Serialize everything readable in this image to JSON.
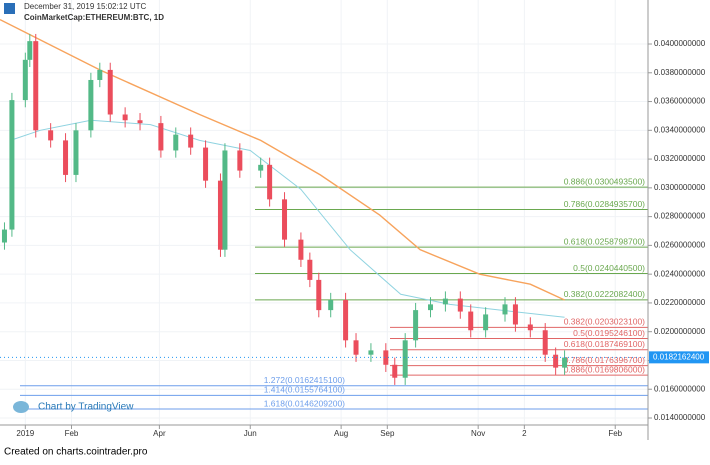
{
  "chart_data": {
    "type": "candlestick",
    "header": {
      "date": "December 31, 2019 15:02:12 UTC",
      "symbol": "CoinMarketCap:ETHEREUM:BTC, 1D"
    },
    "watermark": "Chart by TradingView",
    "footer": "Created on charts.cointrader.pro",
    "x": [
      -14,
      -9,
      0,
      3,
      7,
      17,
      27,
      34,
      44,
      50,
      57,
      67,
      77,
      91,
      101,
      111,
      121,
      131,
      134,
      144,
      158,
      164,
      174,
      185,
      191,
      197,
      205,
      215,
      222,
      232,
      242,
      248,
      255,
      262,
      272,
      282,
      292,
      299,
      309,
      322,
      329,
      339,
      349,
      356,
      362
    ],
    "open": [
      0.0262,
      0.0271,
      0.0361,
      0.0389,
      0.0402,
      0.034,
      0.0333,
      0.0309,
      0.034,
      0.0375,
      0.0382,
      0.0351,
      0.0347,
      0.0345,
      0.0326,
      0.0337,
      0.0328,
      0.0305,
      0.0257,
      0.0326,
      0.0312,
      0.0316,
      0.0292,
      0.0264,
      0.025,
      0.0236,
      0.0215,
      0.0222,
      0.0194,
      0.0184,
      0.0187,
      0.0177,
      0.0168,
      0.0194,
      0.0215,
      0.0219,
      0.0223,
      0.0214,
      0.0201,
      0.0212,
      0.0219,
      0.0205,
      0.0201,
      0.0184,
      0.0175
    ],
    "high": [
      0.0276,
      0.0366,
      0.0394,
      0.0407,
      0.0407,
      0.0345,
      0.0338,
      0.0345,
      0.038,
      0.0387,
      0.0387,
      0.0356,
      0.0352,
      0.035,
      0.0342,
      0.0342,
      0.0333,
      0.031,
      0.0331,
      0.0331,
      0.0321,
      0.0321,
      0.0297,
      0.0269,
      0.0255,
      0.0241,
      0.0227,
      0.0227,
      0.0199,
      0.0192,
      0.0192,
      0.0182,
      0.0199,
      0.022,
      0.0224,
      0.0228,
      0.0228,
      0.0219,
      0.0217,
      0.0224,
      0.0224,
      0.021,
      0.0206,
      0.0189,
      0.0187
    ],
    "low": [
      0.0257,
      0.0266,
      0.0356,
      0.0384,
      0.0335,
      0.0328,
      0.0304,
      0.0304,
      0.0335,
      0.037,
      0.0346,
      0.0342,
      0.034,
      0.0321,
      0.0321,
      0.0323,
      0.03,
      0.0252,
      0.0252,
      0.0307,
      0.0307,
      0.0287,
      0.0259,
      0.0245,
      0.0231,
      0.021,
      0.021,
      0.0189,
      0.0179,
      0.0179,
      0.0172,
      0.0163,
      0.0163,
      0.0189,
      0.021,
      0.0214,
      0.0209,
      0.0196,
      0.0196,
      0.0207,
      0.02,
      0.0196,
      0.0179,
      0.017,
      0.017
    ],
    "close": [
      0.0271,
      0.0361,
      0.0389,
      0.0402,
      0.034,
      0.0333,
      0.0309,
      0.034,
      0.0375,
      0.0382,
      0.0351,
      0.0347,
      0.0345,
      0.0326,
      0.0337,
      0.0328,
      0.0305,
      0.0257,
      0.0326,
      0.0312,
      0.0316,
      0.0292,
      0.0264,
      0.025,
      0.0236,
      0.0215,
      0.0222,
      0.0194,
      0.0184,
      0.0187,
      0.0177,
      0.0168,
      0.0194,
      0.0215,
      0.0219,
      0.0223,
      0.0214,
      0.0201,
      0.0212,
      0.0219,
      0.0205,
      0.0201,
      0.0184,
      0.0175,
      0.0182
    ],
    "up_color": "#53b987",
    "down_color": "#eb4d5c",
    "lines": [
      {
        "color": "#f7a35c",
        "x": [
          -17,
          50,
          117,
          158,
          198,
          238,
          265,
          305,
          339,
          362
        ],
        "values": [
          0.0417,
          0.0382,
          0.0351,
          0.0333,
          0.0309,
          0.0281,
          0.0257,
          0.024,
          0.0233,
          0.0222
        ]
      },
      {
        "color": "#8fd3e0",
        "x": [
          -10,
          10,
          44,
          84,
          117,
          151,
          185,
          218,
          252,
          285,
          319,
          362
        ],
        "values": [
          0.0333,
          0.034,
          0.0347,
          0.0344,
          0.0333,
          0.0326,
          0.0299,
          0.0257,
          0.0226,
          0.0219,
          0.0215,
          0.021
        ]
      }
    ],
    "fib_groups": [
      {
        "color": "#6aa84f",
        "levels": [
          {
            "label": "0.886(0.0300493500)",
            "value": 0.03004935
          },
          {
            "label": "0.786(0.0284935700)",
            "value": 0.02849357
          },
          {
            "label": "0.618(0.0258798700)",
            "value": 0.02587987
          },
          {
            "label": "0.5(0.0240440500)",
            "value": 0.02404405
          },
          {
            "label": "0.382(0.0222082400)",
            "value": 0.02220824
          }
        ]
      },
      {
        "color": "#e06666",
        "levels": [
          {
            "label": "0.382(0.0203023100)",
            "value": 0.02030231
          },
          {
            "label": "0.5(0.0195246100)",
            "value": 0.01952461
          },
          {
            "label": "0.618(0.0187469100)",
            "value": 0.01874691
          },
          {
            "label": "0.786(0.0176396700)",
            "value": 0.01763967
          },
          {
            "label": "0.886(0.0169806000)",
            "value": 0.0169806
          }
        ]
      },
      {
        "color": "#6d9eeb",
        "levels": [
          {
            "label": "1.272(0.0162415100)",
            "value": 0.01624151
          },
          {
            "label": "1.414(0.0155764100)",
            "value": 0.01557641
          },
          {
            "label": "1.618(0.0146209200)",
            "value": 0.01462092
          }
        ]
      }
    ],
    "last_price": {
      "value": 0.01821624,
      "label": "0.0182162400",
      "color": "#2196f3"
    },
    "xlim": [
      -17,
      418
    ],
    "ylim": [
      0.01247,
      0.04306
    ],
    "xticks": [
      {
        "value": 0,
        "label": "2019"
      },
      {
        "value": 31,
        "label": "Feb"
      },
      {
        "value": 90,
        "label": "Apr"
      },
      {
        "value": 151,
        "label": "Jun"
      },
      {
        "value": 212,
        "label": "Aug"
      },
      {
        "value": 243,
        "label": "Sep"
      },
      {
        "value": 304,
        "label": "Nov"
      },
      {
        "value": 335,
        "label": "2"
      },
      {
        "value": 396,
        "label": "Feb"
      }
    ],
    "yticks": [
      {
        "value": 0.014,
        "label": "0.0140000000"
      },
      {
        "value": 0.016,
        "label": "0.0160000000"
      },
      {
        "value": 0.018,
        "label": "0.0180000000"
      },
      {
        "value": 0.02,
        "label": "0.0200000000"
      },
      {
        "value": 0.022,
        "label": "0.0220000000"
      },
      {
        "value": 0.024,
        "label": "0.0240000000"
      },
      {
        "value": 0.026,
        "label": "0.0260000000"
      },
      {
        "value": 0.028,
        "label": "0.0280000000"
      },
      {
        "value": 0.03,
        "label": "0.0300000000"
      },
      {
        "value": 0.032,
        "label": "0.0320000000"
      },
      {
        "value": 0.034,
        "label": "0.0340000000"
      },
      {
        "value": 0.036,
        "label": "0.0360000000"
      },
      {
        "value": 0.038,
        "label": "0.0380000000"
      },
      {
        "value": 0.04,
        "label": "0.0400000000"
      }
    ],
    "grid": true
  }
}
